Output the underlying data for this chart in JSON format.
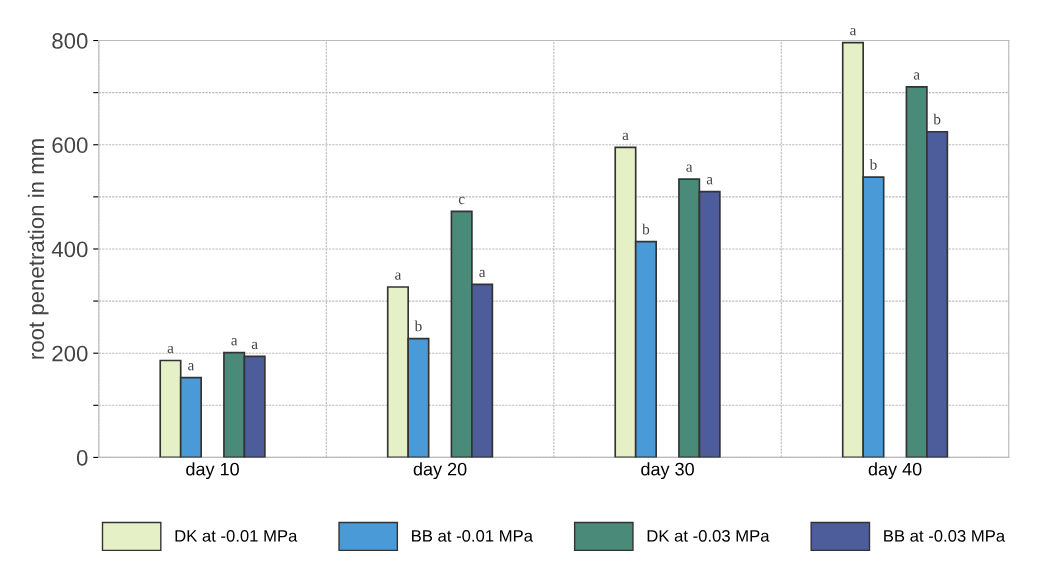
{
  "chart_data": {
    "type": "bar",
    "ylabel": "root penetration in mm",
    "categories": [
      "day 10",
      "day 20",
      "day 30",
      "day 40"
    ],
    "series": [
      {
        "name": "DK at -0.01 MPa",
        "color": "#e6f0c6",
        "values": [
          186,
          327,
          595,
          796
        ],
        "value_labels": [
          "a",
          "a",
          "a",
          "a"
        ]
      },
      {
        "name": "BB at -0.01 MPa",
        "color": "#4a9ad8",
        "values": [
          153,
          228,
          414,
          538
        ],
        "value_labels": [
          "a",
          "b",
          "b",
          "b"
        ]
      },
      {
        "name": "DK at -0.03 MPa",
        "color": "#4a8a78",
        "values": [
          201,
          472,
          534,
          711
        ],
        "value_labels": [
          "a",
          "c",
          "a",
          "a"
        ]
      },
      {
        "name": "BB at -0.03 MPa",
        "color": "#4d5c9a",
        "values": [
          194,
          332,
          510,
          625
        ],
        "value_labels": [
          "a",
          "a",
          "a",
          "b"
        ]
      }
    ],
    "ylim": [
      0,
      800
    ],
    "yticks": [
      0,
      {
        "value": 100,
        "label": null
      },
      200,
      {
        "value": 300,
        "label": null
      },
      400,
      {
        "value": 500,
        "label": null
      },
      600,
      {
        "value": 700,
        "label": null
      },
      800
    ],
    "grid": true,
    "legend": "bottom"
  }
}
